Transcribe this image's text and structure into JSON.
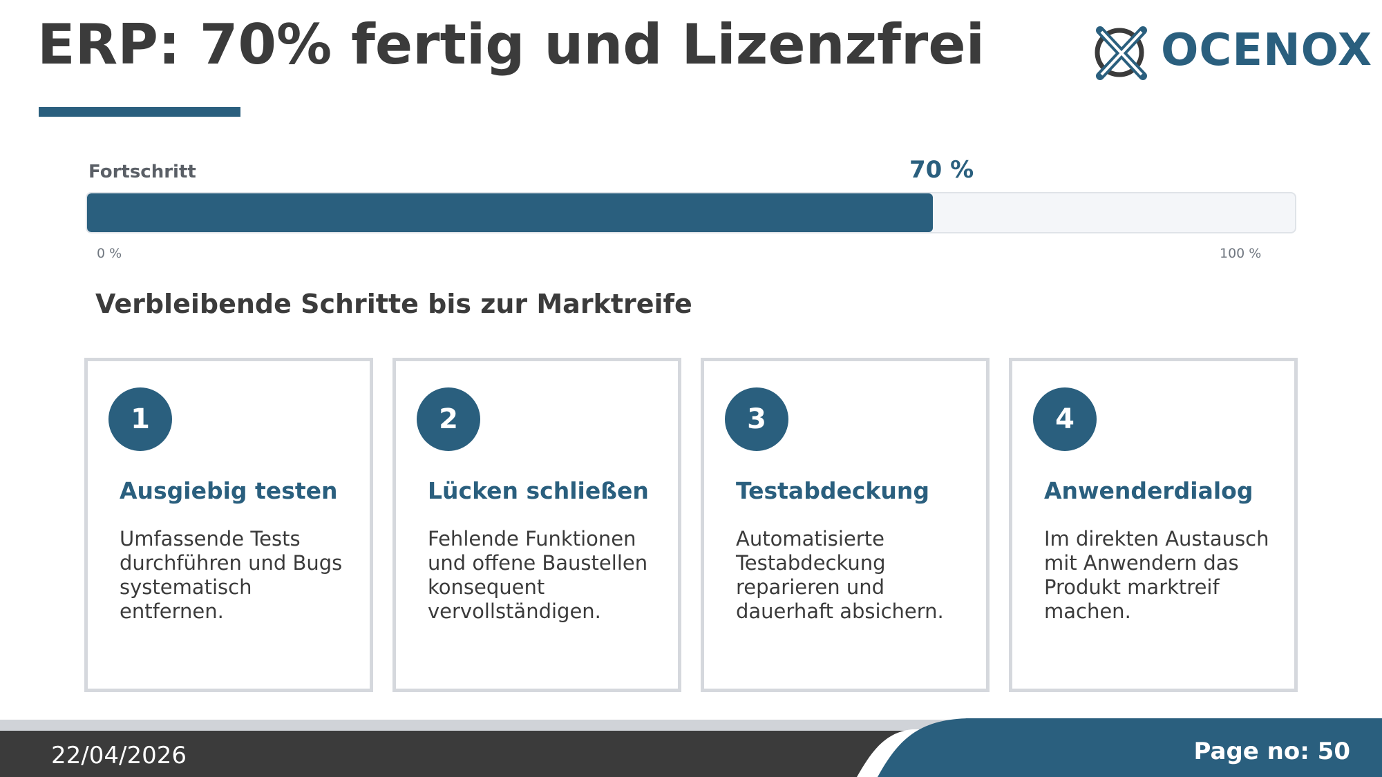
{
  "header": {
    "title": "ERP: 70% fertig und Lizenzfrei",
    "logo_text": "OCENOX"
  },
  "progress": {
    "label": "Fortschritt",
    "value_label": "70 %",
    "value_percent": 70,
    "min_label": "0 %",
    "max_label": "100 %"
  },
  "section": {
    "heading": "Verbleibende Schritte bis zur Marktreife"
  },
  "steps": [
    {
      "number": "1",
      "title": "Ausgiebig testen",
      "text": "Umfassende Tests durchführen und Bugs systematisch entfernen."
    },
    {
      "number": "2",
      "title": "Lücken schließen",
      "text": "Fehlende Funktionen und offene Baustellen konsequent vervollständigen."
    },
    {
      "number": "3",
      "title": "Testabdeckung",
      "text": "Automatisierte Testabdeckung reparieren und dauerhaft absichern."
    },
    {
      "number": "4",
      "title": "Anwenderdialog",
      "text": "Im direkten Austausch mit Anwendern das Produkt marktreif machen."
    }
  ],
  "footer": {
    "date": "22/04/2026",
    "page": "Page no: 50"
  },
  "colors": {
    "accent": "#2a5f7e",
    "dark": "#3b3b3b",
    "card_border": "#d5d8dd"
  }
}
